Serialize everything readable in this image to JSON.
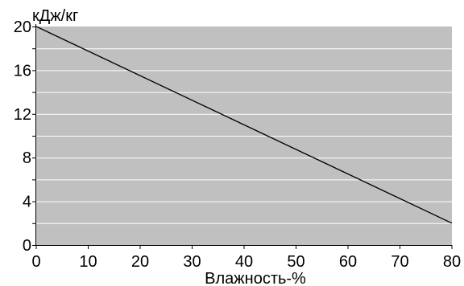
{
  "chart_data": {
    "type": "line",
    "title": "",
    "xlabel": "Влажность-%",
    "ylabel": "кДж/кг",
    "xlim": [
      0,
      80
    ],
    "ylim": [
      0,
      20
    ],
    "x_ticks": [
      0,
      10,
      20,
      30,
      40,
      50,
      60,
      70,
      80
    ],
    "y_ticks": [
      0,
      4,
      8,
      12,
      16,
      20
    ],
    "grid": true,
    "legend": "none",
    "colors": {
      "plot_background": "#c0c0c0",
      "grid": "#ffffff",
      "line": "#000000",
      "axis": "#000000"
    },
    "series": [
      {
        "x": [
          0,
          80
        ],
        "y": [
          20,
          2
        ]
      }
    ]
  }
}
